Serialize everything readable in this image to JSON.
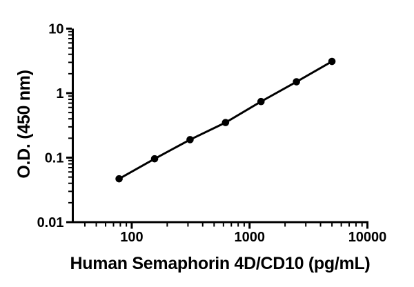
{
  "figure": {
    "background": "#ffffff",
    "axis_color": "#000000"
  },
  "chart_data": {
    "type": "line",
    "xlabel": "Human Semaphorin 4D/CD10 (pg/mL)",
    "ylabel": "O.D. (450 nm)",
    "xscale": "log",
    "yscale": "log",
    "xlim": [
      31.6,
      10000
    ],
    "ylim": [
      0.01,
      10
    ],
    "grid": false,
    "legend": false,
    "x_tick_values": [
      100,
      1000,
      10000
    ],
    "x_tick_labels": [
      "100",
      "1000",
      "10000"
    ],
    "y_tick_values": [
      10,
      1,
      0.1,
      0.01
    ],
    "y_tick_labels": [
      "10",
      "1",
      "0.1",
      "0.01"
    ],
    "series": [
      {
        "x": [
          78.1,
          156.3,
          312.5,
          625,
          1250,
          2500,
          5000
        ],
        "y": [
          0.047,
          0.096,
          0.19,
          0.35,
          0.74,
          1.5,
          3.1
        ],
        "marker": "circle",
        "marker_color": "#000000",
        "line_color": "#000000"
      }
    ]
  }
}
